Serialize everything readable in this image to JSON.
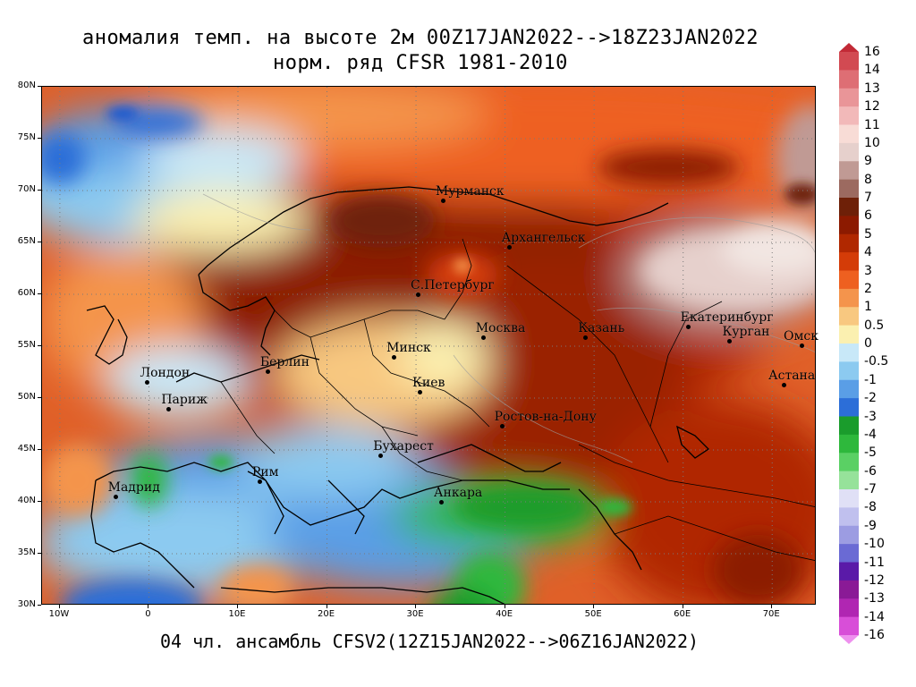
{
  "header": {
    "title_line1": "аномалия темп. на высоте 2м 00Z17JAN2022-->18Z23JAN2022",
    "title_line2": "норм. ряд CFSR 1981-2010"
  },
  "footer": {
    "text": "04 чл. ансамбль CFSV2(12Z15JAN2022-->06Z16JAN2022)"
  },
  "map": {
    "lon_range": [
      -12,
      75
    ],
    "lat_range": [
      30,
      80
    ],
    "lat_labels": [
      "80N",
      "75N",
      "70N",
      "65N",
      "60N",
      "55N",
      "50N",
      "45N",
      "40N",
      "35N",
      "30N"
    ],
    "lon_labels": [
      "10W",
      "0",
      "10E",
      "20E",
      "30E",
      "40E",
      "50E",
      "60E",
      "70E"
    ],
    "cities": [
      {
        "name": "Мурманск",
        "lon": 33.1,
        "lat": 69.0
      },
      {
        "name": "Архангельск",
        "lon": 40.5,
        "lat": 64.5
      },
      {
        "name": "С.Петербург",
        "lon": 30.3,
        "lat": 59.9
      },
      {
        "name": "Москва",
        "lon": 37.6,
        "lat": 55.8
      },
      {
        "name": "Казань",
        "lon": 49.1,
        "lat": 55.8
      },
      {
        "name": "Екатеринбург",
        "lon": 60.6,
        "lat": 56.8
      },
      {
        "name": "Курган",
        "lon": 65.3,
        "lat": 55.4
      },
      {
        "name": "Омск",
        "lon": 73.4,
        "lat": 55.0
      },
      {
        "name": "Астана",
        "lon": 71.4,
        "lat": 51.2
      },
      {
        "name": "Минск",
        "lon": 27.6,
        "lat": 53.9
      },
      {
        "name": "Берлин",
        "lon": 13.4,
        "lat": 52.5
      },
      {
        "name": "Лондон",
        "lon": -0.1,
        "lat": 51.5
      },
      {
        "name": "Париж",
        "lon": 2.3,
        "lat": 48.9
      },
      {
        "name": "Киев",
        "lon": 30.5,
        "lat": 50.5
      },
      {
        "name": "Ростов-на-Дону",
        "lon": 39.7,
        "lat": 47.2
      },
      {
        "name": "Бухарест",
        "lon": 26.1,
        "lat": 44.4
      },
      {
        "name": "Рим",
        "lon": 12.5,
        "lat": 41.9
      },
      {
        "name": "Мадрид",
        "lon": -3.7,
        "lat": 40.4
      },
      {
        "name": "Анкара",
        "lon": 32.9,
        "lat": 39.9
      }
    ]
  },
  "legend": {
    "labels": [
      "16",
      "14",
      "13",
      "12",
      "11",
      "10",
      "9",
      "8",
      "7",
      "6",
      "5",
      "4",
      "3",
      "2",
      "1",
      "0.5",
      "0",
      "-0.5",
      "-1",
      "-2",
      "-3",
      "-4",
      "-5",
      "-6",
      "-7",
      "-8",
      "-9",
      "-10",
      "-11",
      "-12",
      "-13",
      "-14",
      "-16"
    ],
    "colors": [
      "#c22a36",
      "#d24a52",
      "#de6e74",
      "#e99598",
      "#f2b9b9",
      "#f8dcd6",
      "#e6d0cc",
      "#c09a94",
      "#9c6a60",
      "#6e2008",
      "#8c1a00",
      "#b02800",
      "#d43c08",
      "#ee6020",
      "#f4944c",
      "#f8c880",
      "#fbf0b0",
      "#c8e8f8",
      "#8ccaf0",
      "#5a9ee6",
      "#2c6ed8",
      "#1a9c2c",
      "#2eb83c",
      "#5ad064",
      "#96e29a",
      "#e0e0f6",
      "#c0c0ee",
      "#9c9ce2",
      "#6a6ad4",
      "#5a1aa8",
      "#8a1a96",
      "#b026b2",
      "#d84ed8",
      "#ee90ee"
    ]
  }
}
